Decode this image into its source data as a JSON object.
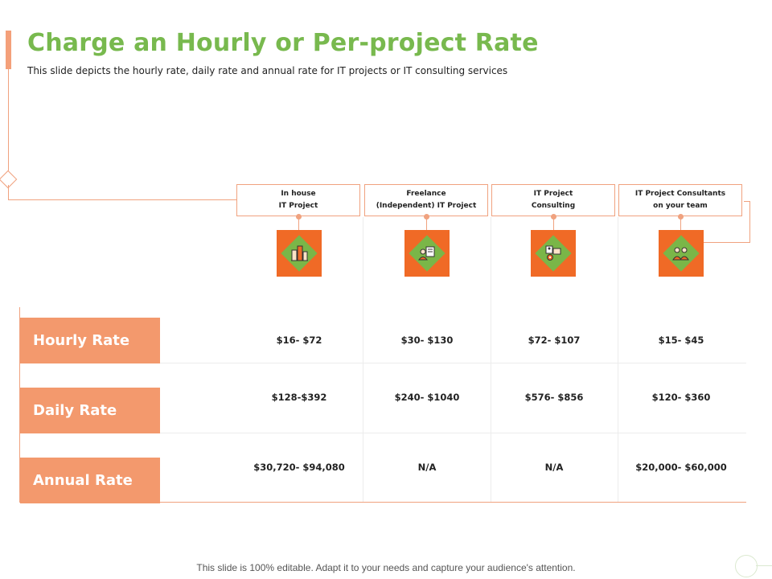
{
  "slide": {
    "title": "Charge an Hourly or Per-project Rate",
    "subtitle": "This slide depicts the hourly rate, daily rate and annual rate for IT projects or IT consulting services",
    "footer": "This slide is 100% editable. Adapt it to your needs and capture your audience's attention."
  },
  "colors": {
    "title_green": "#78b94e",
    "accent_orange": "#f06a26",
    "label_orange": "#f3996d",
    "line_orange": "#f0a27f",
    "icon_green": "#7ab648"
  },
  "columns": [
    {
      "label": "In house\nIT Project",
      "icon": "buildings-icon"
    },
    {
      "label": "Freelance\n(Independent)  IT Project",
      "icon": "freelancer-laptop-icon"
    },
    {
      "label": "IT Project\nConsulting",
      "icon": "consultant-gear-icon"
    },
    {
      "label": "IT Project  Consultants\non your team",
      "icon": "team-icon"
    }
  ],
  "rows": [
    {
      "label": "Hourly Rate",
      "values": [
        "$16- $72",
        "$30- $130",
        "$72- $107",
        "$15- $45"
      ]
    },
    {
      "label": "Daily Rate",
      "values": [
        "$128-$392",
        "$240- $1040",
        "$576- $856",
        "$120- $360"
      ]
    },
    {
      "label": "Annual Rate",
      "values": [
        "$30,720- $94,080",
        "N/A",
        "N/A",
        "$20,000- $60,000"
      ]
    }
  ]
}
